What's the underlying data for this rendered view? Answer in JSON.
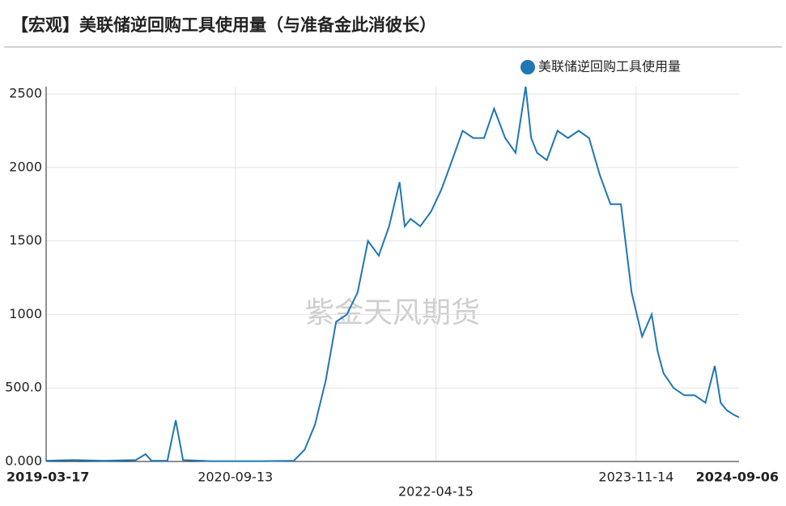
{
  "chart_data": {
    "type": "line",
    "title": "【宏观】美联储逆回购工具使用量（与准备金此消彼长）",
    "watermark": "紫金天风期货",
    "legend_position": "top-right",
    "grid": true,
    "xlim": [
      "2019-03-17",
      "2024-09-06"
    ],
    "xticks": [
      "2019-03-17",
      "2020-09-13",
      "2022-04-15",
      "2023-11-14",
      "2024-09-06"
    ],
    "ylim": [
      0,
      2550
    ],
    "yticks": [
      {
        "value": 0,
        "label": "0.000"
      },
      {
        "value": 500,
        "label": "500.0"
      },
      1000,
      1500,
      2000,
      2500
    ],
    "x": [
      "2019-03-17",
      "2019-06-01",
      "2019-09-01",
      "2019-12-01",
      "2019-12-29",
      "2020-01-15",
      "2020-03-01",
      "2020-03-25",
      "2020-04-15",
      "2020-07-01",
      "2020-12-01",
      "2021-03-01",
      "2021-04-01",
      "2021-05-01",
      "2021-06-01",
      "2021-07-01",
      "2021-08-01",
      "2021-09-01",
      "2021-10-01",
      "2021-11-01",
      "2021-12-01",
      "2021-12-31",
      "2022-01-15",
      "2022-02-01",
      "2022-03-01",
      "2022-04-01",
      "2022-05-01",
      "2022-06-01",
      "2022-07-01",
      "2022-08-01",
      "2022-09-01",
      "2022-09-30",
      "2022-11-01",
      "2022-12-01",
      "2022-12-30",
      "2023-01-15",
      "2023-02-01",
      "2023-03-01",
      "2023-04-01",
      "2023-05-01",
      "2023-06-01",
      "2023-07-01",
      "2023-08-01",
      "2023-09-01",
      "2023-10-01",
      "2023-11-01",
      "2023-12-01",
      "2023-12-29",
      "2024-01-15",
      "2024-02-01",
      "2024-03-01",
      "2024-04-01",
      "2024-05-01",
      "2024-06-01",
      "2024-06-28",
      "2024-07-15",
      "2024-08-01",
      "2024-08-20",
      "2024-09-06"
    ],
    "series": [
      {
        "name": "美联储逆回购工具使用量",
        "color": "#1f77b4",
        "values": [
          5,
          10,
          5,
          10,
          50,
          5,
          5,
          280,
          10,
          2,
          2,
          5,
          80,
          250,
          550,
          950,
          1000,
          1150,
          1500,
          1400,
          1600,
          1900,
          1600,
          1650,
          1600,
          1700,
          1850,
          2050,
          2250,
          2200,
          2200,
          2400,
          2200,
          2100,
          2550,
          2200,
          2100,
          2050,
          2250,
          2200,
          2250,
          2200,
          1950,
          1750,
          1750,
          1150,
          850,
          1000,
          750,
          600,
          500,
          450,
          450,
          400,
          650,
          400,
          350,
          320,
          300
        ]
      }
    ]
  }
}
